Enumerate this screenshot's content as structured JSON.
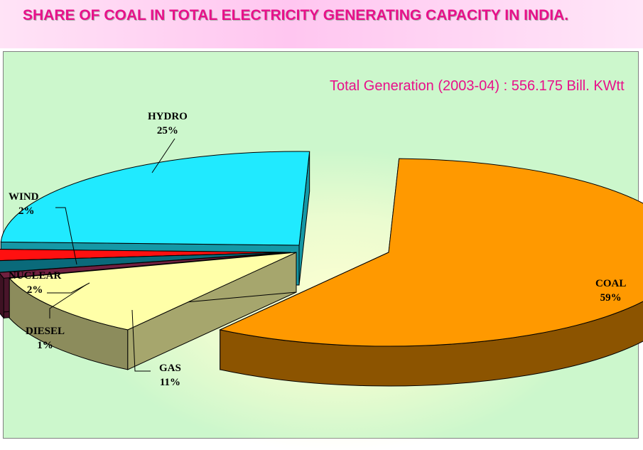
{
  "header": {
    "title": "SHARE OF COAL IN TOTAL ELECTRICITY GENERATING CAPACITY IN INDIA."
  },
  "annotation": {
    "text": "Total Generation (2003-04) : 556.175 Bill. KWtt"
  },
  "chart_data": {
    "type": "pie",
    "style": "3d-exploded",
    "title": "SHARE OF COAL IN TOTAL ELECTRICITY GENERATING CAPACITY IN INDIA.",
    "slices": [
      {
        "name": "COAL",
        "label": "59%",
        "value": 59,
        "color": "#ff9900"
      },
      {
        "name": "GAS",
        "label": "11%",
        "value": 11,
        "color": "#ffffa8"
      },
      {
        "name": "DIESEL",
        "label": "1%",
        "value": 1,
        "color": "#702040"
      },
      {
        "name": "NUCLEAR",
        "label": "2%",
        "value": 2,
        "color": "#0a6a7a"
      },
      {
        "name": "WIND",
        "label": "2%",
        "value": 2,
        "color": "#ff1010"
      },
      {
        "name": "HYDRO",
        "label": "25%",
        "value": 25,
        "color": "#20eaff"
      }
    ],
    "legend": "none",
    "data_labels": "outside with leader lines"
  }
}
